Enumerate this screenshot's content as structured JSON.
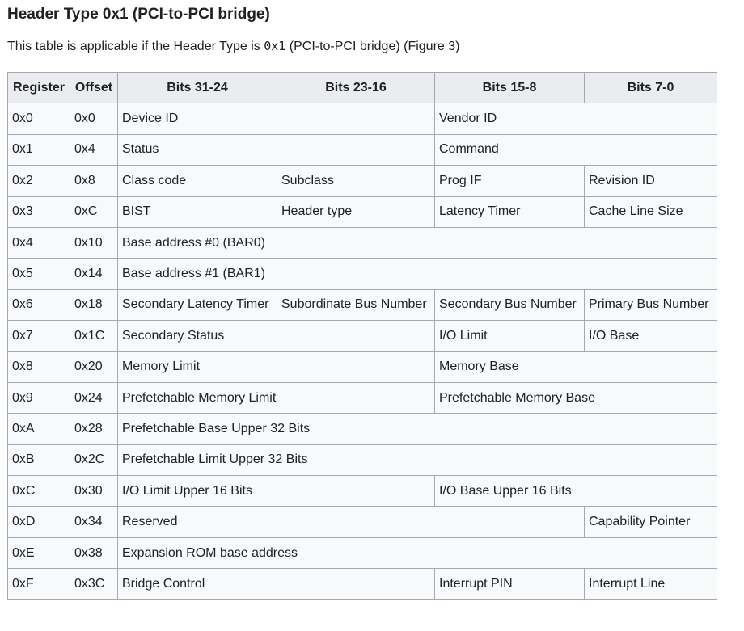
{
  "heading": "Header Type 0x1 (PCI-to-PCI bridge)",
  "intro": {
    "before": "This table is applicable if the Header Type is ",
    "code": "0x1",
    "after": " (PCI-to-PCI bridge) (Figure 3)"
  },
  "table": {
    "headers": [
      "Register",
      "Offset",
      "Bits 31-24",
      "Bits 23-16",
      "Bits 15-8",
      "Bits 7-0"
    ],
    "rows": [
      {
        "register": "0x0",
        "offset": "0x0",
        "cells": [
          {
            "text": "Device ID",
            "span": 2
          },
          {
            "text": "Vendor ID",
            "span": 2
          }
        ]
      },
      {
        "register": "0x1",
        "offset": "0x4",
        "cells": [
          {
            "text": "Status",
            "span": 2
          },
          {
            "text": "Command",
            "span": 2
          }
        ]
      },
      {
        "register": "0x2",
        "offset": "0x8",
        "cells": [
          {
            "text": "Class code",
            "span": 1
          },
          {
            "text": "Subclass",
            "span": 1
          },
          {
            "text": "Prog IF",
            "span": 1
          },
          {
            "text": "Revision ID",
            "span": 1
          }
        ]
      },
      {
        "register": "0x3",
        "offset": "0xC",
        "cells": [
          {
            "text": "BIST",
            "span": 1
          },
          {
            "text": "Header type",
            "span": 1
          },
          {
            "text": "Latency Timer",
            "span": 1
          },
          {
            "text": "Cache Line Size",
            "span": 1
          }
        ]
      },
      {
        "register": "0x4",
        "offset": "0x10",
        "cells": [
          {
            "text": "Base address #0 (BAR0)",
            "span": 4
          }
        ]
      },
      {
        "register": "0x5",
        "offset": "0x14",
        "cells": [
          {
            "text": "Base address #1 (BAR1)",
            "span": 4
          }
        ]
      },
      {
        "register": "0x6",
        "offset": "0x18",
        "cells": [
          {
            "text": "Secondary Latency Timer",
            "span": 1
          },
          {
            "text": "Subordinate Bus Number",
            "span": 1
          },
          {
            "text": "Secondary Bus Number",
            "span": 1
          },
          {
            "text": "Primary Bus Number",
            "span": 1
          }
        ]
      },
      {
        "register": "0x7",
        "offset": "0x1C",
        "cells": [
          {
            "text": "Secondary Status",
            "span": 2
          },
          {
            "text": "I/O Limit",
            "span": 1
          },
          {
            "text": "I/O Base",
            "span": 1
          }
        ]
      },
      {
        "register": "0x8",
        "offset": "0x20",
        "cells": [
          {
            "text": "Memory Limit",
            "span": 2
          },
          {
            "text": "Memory Base",
            "span": 2
          }
        ]
      },
      {
        "register": "0x9",
        "offset": "0x24",
        "cells": [
          {
            "text": "Prefetchable Memory Limit",
            "span": 2
          },
          {
            "text": "Prefetchable Memory Base",
            "span": 2
          }
        ]
      },
      {
        "register": "0xA",
        "offset": "0x28",
        "cells": [
          {
            "text": "Prefetchable Base Upper 32 Bits",
            "span": 4
          }
        ]
      },
      {
        "register": "0xB",
        "offset": "0x2C",
        "cells": [
          {
            "text": "Prefetchable Limit Upper 32 Bits",
            "span": 4
          }
        ]
      },
      {
        "register": "0xC",
        "offset": "0x30",
        "cells": [
          {
            "text": "I/O Limit Upper 16 Bits",
            "span": 2
          },
          {
            "text": "I/O Base Upper 16 Bits",
            "span": 2
          }
        ]
      },
      {
        "register": "0xD",
        "offset": "0x34",
        "cells": [
          {
            "text": "Reserved",
            "span": 3
          },
          {
            "text": "Capability Pointer",
            "span": 1
          }
        ]
      },
      {
        "register": "0xE",
        "offset": "0x38",
        "cells": [
          {
            "text": "Expansion ROM base address",
            "span": 4
          }
        ]
      },
      {
        "register": "0xF",
        "offset": "0x3C",
        "cells": [
          {
            "text": "Bridge Control",
            "span": 2
          },
          {
            "text": "Interrupt PIN",
            "span": 1
          },
          {
            "text": "Interrupt Line",
            "span": 1
          }
        ]
      }
    ]
  }
}
